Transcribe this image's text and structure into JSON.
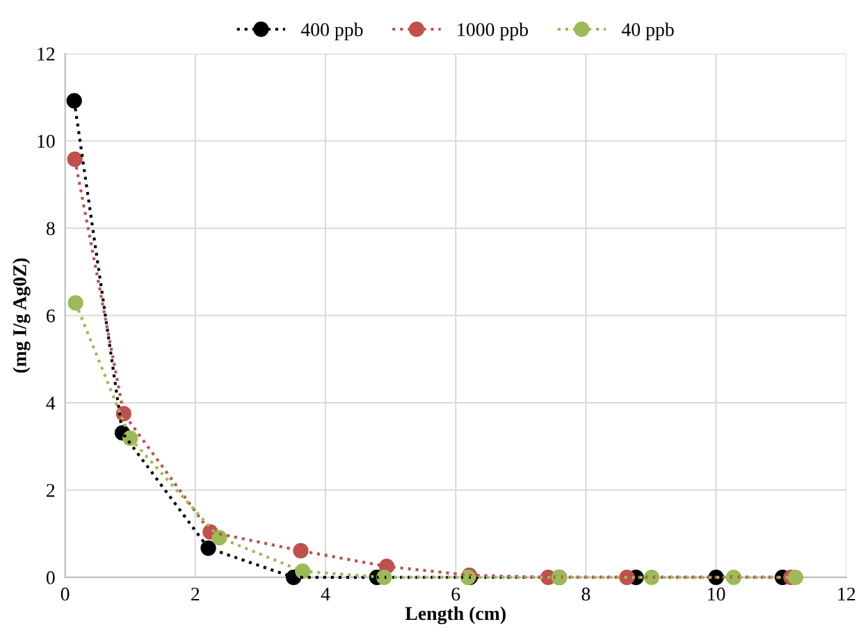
{
  "chart_data": {
    "type": "line",
    "xlabel": "Length (cm)",
    "ylabel": "(mg I/g Ag0Z)",
    "xlim": [
      0,
      12
    ],
    "xticks": [
      0,
      2,
      4,
      6,
      8,
      10,
      12
    ],
    "ylim": [
      0,
      12
    ],
    "yticks": [
      0,
      2,
      4,
      6,
      8,
      10,
      12
    ],
    "grid": true,
    "legend": "top",
    "marker": "circle",
    "line_style": "dotted",
    "series": [
      {
        "name": "400 ppb",
        "color": "#000000",
        "x": [
          0.14,
          0.88,
          2.2,
          3.51,
          4.79,
          6.22,
          7.59,
          8.77,
          10.0,
          11.02
        ],
        "values": [
          10.92,
          3.31,
          0.67,
          0,
          0,
          0,
          0,
          0,
          0,
          0
        ]
      },
      {
        "name": "1000 ppb",
        "color": "#c0504d",
        "x": [
          0.15,
          0.9,
          2.23,
          3.62,
          4.94,
          6.21,
          7.42,
          8.63,
          11.15
        ],
        "values": [
          9.58,
          3.75,
          1.04,
          0.61,
          0.25,
          0.05,
          0,
          0,
          0
        ]
      },
      {
        "name": "40 ppb",
        "color": "#9bbb59",
        "x": [
          0.16,
          1.0,
          2.37,
          3.65,
          4.9,
          6.19,
          7.59,
          9.01,
          10.27,
          11.22
        ],
        "values": [
          6.29,
          3.19,
          0.91,
          0.14,
          0,
          0,
          0,
          0,
          0,
          0
        ]
      }
    ]
  }
}
